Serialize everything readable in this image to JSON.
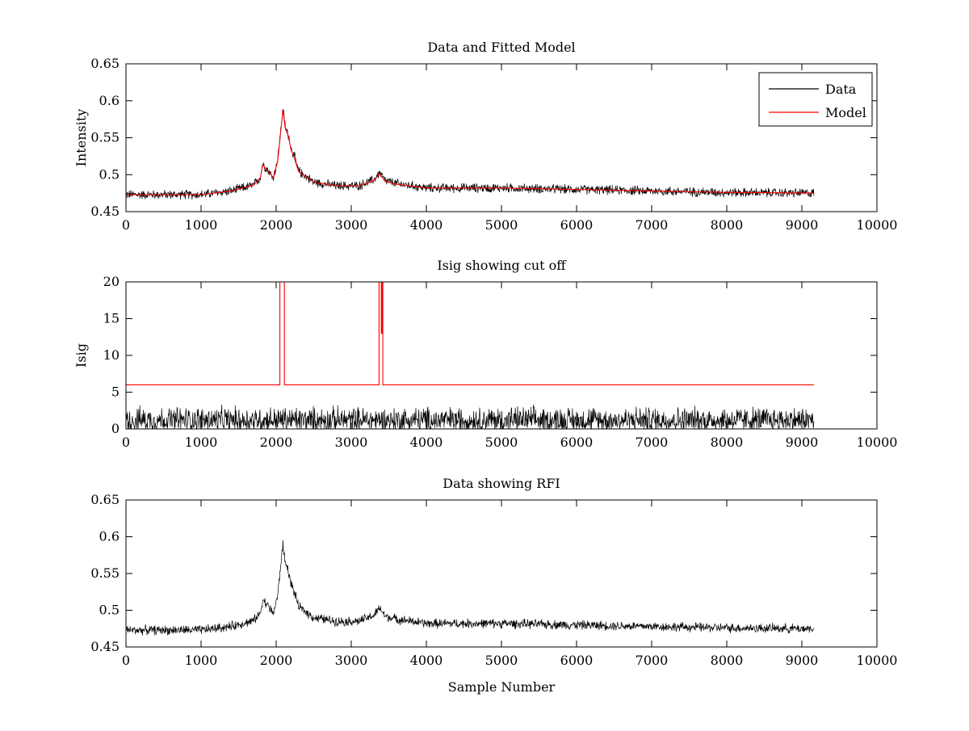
{
  "chart_data": [
    {
      "type": "line",
      "title": "Data and Fitted Model",
      "xlabel": "",
      "ylabel": "Intensity",
      "xlim": [
        0,
        10000
      ],
      "ylim": [
        0.45,
        0.65
      ],
      "xticks": [
        0,
        1000,
        2000,
        3000,
        4000,
        5000,
        6000,
        7000,
        8000,
        9000,
        10000
      ],
      "yticks": [
        0.45,
        0.5,
        0.55,
        0.6,
        0.65
      ],
      "grid": false,
      "legend": "top-right",
      "x_range": [
        0,
        9160
      ],
      "series": [
        {
          "name": "Data",
          "color": "#000000",
          "noise_amplitude": 0.012,
          "x": [
            0,
            1000,
            1400,
            1700,
            1790,
            1820,
            1900,
            1960,
            2020,
            2060,
            2090,
            2120,
            2160,
            2200,
            2240,
            2300,
            2500,
            2800,
            3100,
            3300,
            3380,
            3450,
            3600,
            4000,
            5000,
            6000,
            7000,
            8000,
            9160
          ],
          "values": [
            0.473,
            0.473,
            0.478,
            0.486,
            0.496,
            0.515,
            0.505,
            0.495,
            0.52,
            0.56,
            0.59,
            0.565,
            0.555,
            0.535,
            0.525,
            0.505,
            0.49,
            0.485,
            0.485,
            0.493,
            0.503,
            0.492,
            0.488,
            0.482,
            0.482,
            0.48,
            0.478,
            0.476,
            0.475
          ]
        },
        {
          "name": "Model",
          "color": "#ff0000",
          "noise_amplitude": 0.0,
          "x": [
            0,
            1000,
            1400,
            1700,
            1790,
            1820,
            1900,
            1960,
            2020,
            2060,
            2090,
            2120,
            2160,
            2200,
            2240,
            2300,
            2500,
            2800,
            3100,
            3300,
            3380,
            3450,
            3600,
            4000,
            5000,
            6000,
            7000,
            8000,
            9160
          ],
          "values": [
            0.473,
            0.473,
            0.478,
            0.486,
            0.496,
            0.513,
            0.504,
            0.496,
            0.518,
            0.558,
            0.588,
            0.563,
            0.553,
            0.533,
            0.523,
            0.504,
            0.49,
            0.485,
            0.485,
            0.492,
            0.501,
            0.491,
            0.487,
            0.482,
            0.482,
            0.48,
            0.478,
            0.476,
            0.475
          ]
        }
      ],
      "legend_entries": [
        "Data",
        "Model"
      ]
    },
    {
      "type": "line",
      "title": "Isig showing cut off",
      "xlabel": "",
      "ylabel": "Isig",
      "xlim": [
        0,
        10000
      ],
      "ylim": [
        0,
        20
      ],
      "xticks": [
        0,
        1000,
        2000,
        3000,
        4000,
        5000,
        6000,
        7000,
        8000,
        9000,
        10000
      ],
      "yticks": [
        0,
        5,
        10,
        15,
        20
      ],
      "grid": false,
      "x_range": [
        0,
        9160
      ],
      "series": [
        {
          "name": "Isig",
          "color": "#000000",
          "noise_amplitude": 2.5,
          "x": [
            0,
            9160
          ],
          "values": [
            0.8,
            0.8
          ]
        },
        {
          "name": "Cut off",
          "color": "#ff0000",
          "noise_amplitude": 0.0,
          "x": [
            0,
            2050,
            2050,
            2060,
            2060,
            2100,
            2100,
            2110,
            2110,
            3370,
            3370,
            3400,
            3400,
            3410,
            3410,
            3420,
            3420,
            9160
          ],
          "values": [
            6,
            6,
            20,
            20,
            20,
            20,
            20,
            20,
            6,
            6,
            20,
            20,
            13,
            13,
            20,
            20,
            6,
            6
          ]
        }
      ]
    },
    {
      "type": "line",
      "title": "Data showing RFI",
      "xlabel": "Sample Number",
      "ylabel": "",
      "xlim": [
        0,
        10000
      ],
      "ylim": [
        0.45,
        0.65
      ],
      "xticks": [
        0,
        1000,
        2000,
        3000,
        4000,
        5000,
        6000,
        7000,
        8000,
        9000,
        10000
      ],
      "yticks": [
        0.45,
        0.5,
        0.55,
        0.6,
        0.65
      ],
      "grid": false,
      "x_range": [
        0,
        9160
      ],
      "series": [
        {
          "name": "Data",
          "color": "#000000",
          "noise_amplitude": 0.012,
          "x": [
            0,
            1000,
            1400,
            1700,
            1790,
            1820,
            1900,
            1960,
            2020,
            2060,
            2090,
            2120,
            2160,
            2200,
            2240,
            2300,
            2500,
            2800,
            3100,
            3300,
            3380,
            3450,
            3600,
            4000,
            5000,
            6000,
            7000,
            8000,
            9160
          ],
          "values": [
            0.473,
            0.473,
            0.478,
            0.486,
            0.496,
            0.515,
            0.505,
            0.495,
            0.52,
            0.56,
            0.59,
            0.565,
            0.555,
            0.535,
            0.525,
            0.505,
            0.49,
            0.485,
            0.485,
            0.493,
            0.503,
            0.492,
            0.488,
            0.482,
            0.482,
            0.48,
            0.478,
            0.476,
            0.475
          ]
        }
      ]
    }
  ]
}
